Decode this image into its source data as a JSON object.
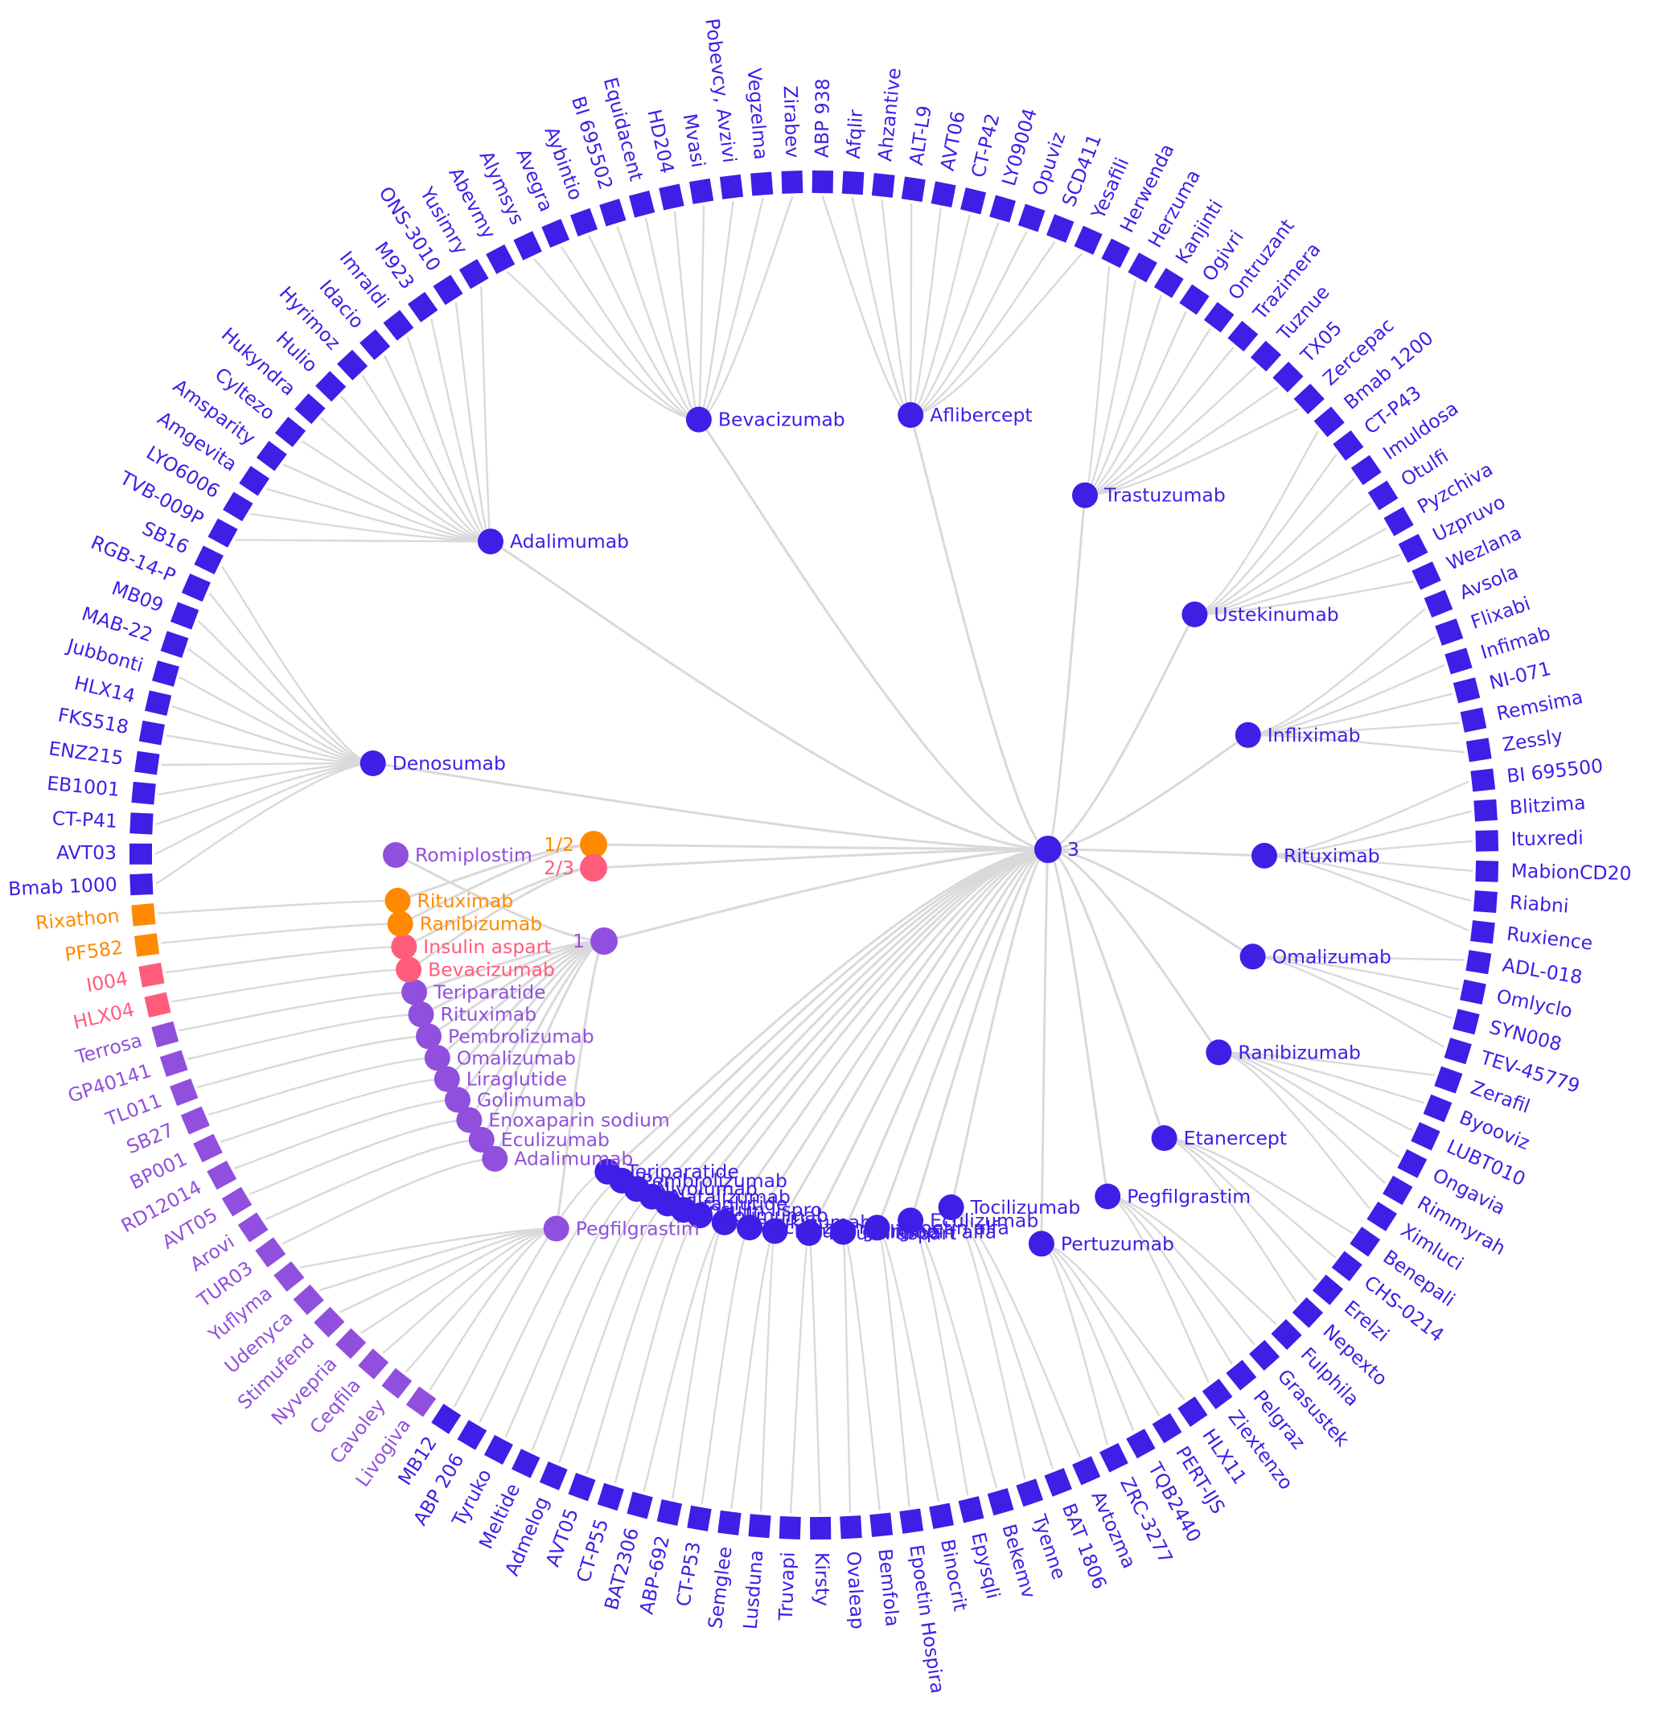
{
  "colors": {
    "tier3": "#3d1fe6",
    "tier1": "#9050dd",
    "tier12": "#ff8a00",
    "tier23": "#ff5c7c",
    "link": "#d9d9d9"
  },
  "root": {
    "label": "3"
  },
  "tiers": [
    {
      "key": "tier3",
      "label": "3",
      "color": "#3d1fe6"
    },
    {
      "key": "tier12",
      "label": "1/2",
      "color": "#ff8a00"
    },
    {
      "key": "tier23",
      "label": "2/3",
      "color": "#ff5c7c"
    },
    {
      "key": "tier1",
      "label": "1",
      "color": "#9050dd"
    }
  ],
  "groups": [
    {
      "name": "Denosumab",
      "tier": "tier3",
      "leaves": [
        "Bmab 1000",
        "AVT03",
        "CT-P41",
        "EB1001",
        "ENZ215",
        "FKS518",
        "HLX14",
        "Jubbonti",
        "MAB-22",
        "MB09",
        "RGB-14-P",
        "SB16"
      ]
    },
    {
      "name": "Adalimumab",
      "tier": "tier3",
      "leaves": [
        "TVB-009P",
        "LYO6006",
        "Amgevita",
        "Amsparity",
        "Cyltezo",
        "Hukyndra",
        "Hulio",
        "Hyrimoz",
        "Idacio",
        "Imraldi",
        "M923",
        "ONS-3010",
        "Yusimry"
      ]
    },
    {
      "name": "Bevacizumab",
      "tier": "tier3",
      "leaves": [
        "Abevmy",
        "Alymsys",
        "Avegra",
        "Aybintio",
        "BI 695502",
        "Equidacent",
        "HD204",
        "Mvasi",
        "Pobevcy, Avzivi",
        "Vegzelma",
        "Zirabev"
      ]
    },
    {
      "name": "Aflibercept",
      "tier": "tier3",
      "leaves": [
        "ABP 938",
        "Afqlir",
        "Ahzantive",
        "ALT-L9",
        "AVT06",
        "CT-P42",
        "LY09004",
        "Opuviz",
        "SCD411",
        "Yesafili"
      ]
    },
    {
      "name": "Trastuzumab",
      "tier": "tier3",
      "leaves": [
        "Herwenda",
        "Herzuma",
        "Kanjinti",
        "Ogivri",
        "Ontruzant",
        "Trazimera",
        "Tuznue",
        "TX05",
        "Zercepac"
      ]
    },
    {
      "name": "Ustekinumab",
      "tier": "tier3",
      "leaves": [
        "Bmab 1200",
        "CT-P43",
        "Imuldosa",
        "Otulfi",
        "Pyzchiva",
        "Uzpruvo",
        "Wezlana"
      ]
    },
    {
      "name": "Infliximab",
      "tier": "tier3",
      "leaves": [
        "Avsola",
        "Flixabi",
        "Infimab",
        "NI-071",
        "Remsima",
        "Zessly"
      ]
    },
    {
      "name": "Rituximab",
      "tier": "tier3",
      "leaves": [
        "BI 695500",
        "Blitzima",
        "Ituxredi",
        "MabionCD20",
        "Riabni",
        "Ruxience"
      ]
    },
    {
      "name": "Omalizumab",
      "tier": "tier3",
      "leaves": [
        "ADL-018",
        "Omlyclo",
        "SYN008",
        "TEV-45779"
      ]
    },
    {
      "name": "Ranibizumab",
      "tier": "tier3",
      "leaves": [
        "Zerafil",
        "Byooviz",
        "LUBT010",
        "Ongavia",
        "Rimmyrah",
        "Ximluci"
      ]
    },
    {
      "name": "Etanercept",
      "tier": "tier3",
      "leaves": [
        "Benepali",
        "CHS-0214",
        "Erelzi",
        "Nepexto"
      ]
    },
    {
      "name": "Pegfilgrastim",
      "tier": "tier3",
      "leaves": [
        "Fulphila",
        "Grasustek",
        "Pelgraz",
        "Ziextenzo"
      ]
    },
    {
      "name": "Pertuzumab",
      "tier": "tier3",
      "leaves": [
        "HLX11",
        "PERT-IJS",
        "TQB2440",
        "ZRC-3277"
      ]
    },
    {
      "name": "Tocilizumab",
      "tier": "tier3",
      "leaves": [
        "Avtozma",
        "BAT 1806",
        "Tyenne"
      ]
    },
    {
      "name": "Eculizumab",
      "tier": "tier3",
      "leaves": [
        "Bekemv",
        "Epysqli"
      ]
    },
    {
      "name": "Epoetin alfa",
      "tier": "tier3",
      "leaves": [
        "Binocrit",
        "Epoetin Hospira"
      ]
    },
    {
      "name": "Follitropin alfa",
      "tier": "tier3",
      "leaves": [
        "Bemfola",
        "Ovaleap"
      ]
    },
    {
      "name": "Insulin aspart",
      "tier": "tier3",
      "leaves": [
        "Kirsty",
        "Truvapi"
      ]
    },
    {
      "name": "Insulin glargine",
      "tier": "tier3",
      "leaves": [
        "Lusduna",
        "Semglee"
      ]
    },
    {
      "name": "Ocrelizumab",
      "tier": "tier3",
      "leaves": [
        "CT-P53"
      ]
    },
    {
      "name": "Secukinumab",
      "tier": "tier3",
      "leaves": [
        "ABP-692",
        "BAT2306"
      ]
    },
    {
      "name": "Golimumab",
      "tier": "tier3",
      "leaves": [
        "CT-P55"
      ]
    },
    {
      "name": "Insulin lispro",
      "tier": "tier3",
      "leaves": [
        "AVT05"
      ]
    },
    {
      "name": "Liraglutide",
      "tier": "tier3",
      "leaves": [
        "Admelog"
      ]
    },
    {
      "name": "Natalizumab",
      "tier": "tier3",
      "leaves": [
        "Meltide"
      ]
    },
    {
      "name": "Nivolumab",
      "tier": "tier3",
      "leaves": [
        "Tyruko"
      ]
    },
    {
      "name": "Pembrolizumab",
      "tier": "tier3",
      "leaves": [
        "ABP 206"
      ]
    },
    {
      "name": "Teriparatide",
      "tier": "tier3",
      "leaves": [
        "MB12"
      ]
    },
    {
      "name": "Pegfilgrastim",
      "tier": "tier1",
      "leaves": [
        "Livogiva",
        "Cavoley",
        "Ceqfila",
        "Nyvepria",
        "Stimufend",
        "Udenyca",
        "Yuflyma"
      ]
    },
    {
      "name": "Adalimumab",
      "tier": "tier1",
      "leaves": [
        "TUR03"
      ]
    },
    {
      "name": "Eculizumab",
      "tier": "tier1",
      "leaves": [
        "Arovi"
      ]
    },
    {
      "name": "Enoxaparin sodium",
      "tier": "tier1",
      "leaves": [
        "AVT05"
      ]
    },
    {
      "name": "Golimumab",
      "tier": "tier1",
      "leaves": [
        "RD12014"
      ]
    },
    {
      "name": "Liraglutide",
      "tier": "tier1",
      "leaves": [
        "BP001"
      ]
    },
    {
      "name": "Omalizumab",
      "tier": "tier1",
      "leaves": [
        "SB27"
      ]
    },
    {
      "name": "Pembrolizumab",
      "tier": "tier1",
      "leaves": [
        "TL011"
      ]
    },
    {
      "name": "Rituximab",
      "tier": "tier1",
      "leaves": [
        "GP40141"
      ]
    },
    {
      "name": "Romiplostim",
      "tier": "tier1",
      "leaves": []
    },
    {
      "name": "Teriparatide",
      "tier": "tier1",
      "leaves": [
        "Terrosa"
      ]
    },
    {
      "name": "Bevacizumab",
      "tier": "tier23",
      "leaves": [
        "HLX04"
      ]
    },
    {
      "name": "Insulin aspart",
      "tier": "tier23",
      "leaves": [
        "I004"
      ]
    },
    {
      "name": "Ranibizumab",
      "tier": "tier12",
      "leaves": [
        "PF582"
      ]
    },
    {
      "name": "Rituximab",
      "tier": "tier12",
      "leaves": [
        "Rixathon"
      ]
    }
  ]
}
